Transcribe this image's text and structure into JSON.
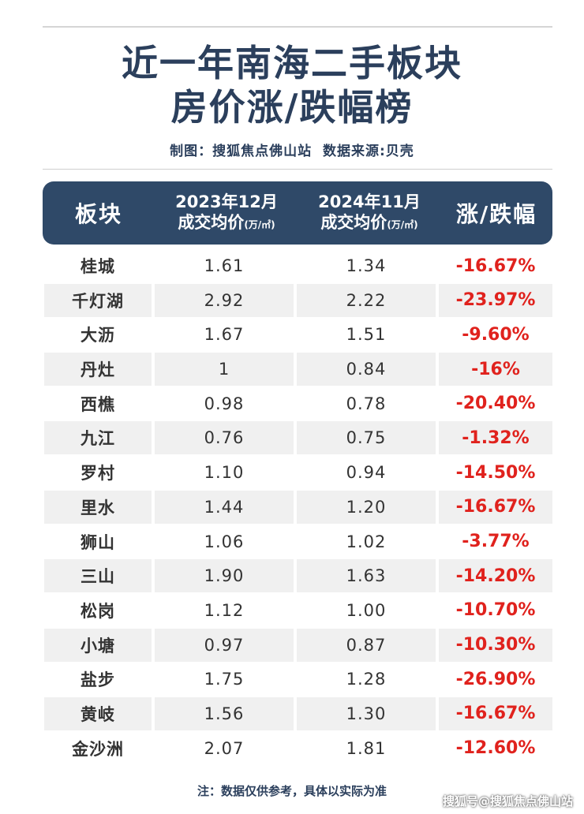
{
  "title": {
    "line1": "近一年南海二手板块",
    "line2": "房价涨/跌幅榜"
  },
  "credits": "制图：搜狐焦点佛山站  数据来源:贝壳",
  "table": {
    "headers": {
      "block": "板块",
      "col2_line1": "2023年12月",
      "col2_line2": "成交均价",
      "col2_unit": "(万/㎡)",
      "col3_line1": "2024年11月",
      "col3_line2": "成交均价",
      "col3_unit": "(万/㎡)",
      "change": "涨/跌幅"
    },
    "rows": [
      {
        "name": "桂城",
        "price_2023": "1.61",
        "price_2024": "1.34",
        "change": "-16.67%"
      },
      {
        "name": "千灯湖",
        "price_2023": "2.92",
        "price_2024": "2.22",
        "change": "-23.97%"
      },
      {
        "name": "大沥",
        "price_2023": "1.67",
        "price_2024": "1.51",
        "change": "-9.60%"
      },
      {
        "name": "丹灶",
        "price_2023": "1",
        "price_2024": "0.84",
        "change": "-16%"
      },
      {
        "name": "西樵",
        "price_2023": "0.98",
        "price_2024": "0.78",
        "change": "-20.40%"
      },
      {
        "name": "九江",
        "price_2023": "0.76",
        "price_2024": "0.75",
        "change": "-1.32%"
      },
      {
        "name": "罗村",
        "price_2023": "1.10",
        "price_2024": "0.94",
        "change": "-14.50%"
      },
      {
        "name": "里水",
        "price_2023": "1.44",
        "price_2024": "1.20",
        "change": "-16.67%"
      },
      {
        "name": "狮山",
        "price_2023": "1.06",
        "price_2024": "1.02",
        "change": "-3.77%"
      },
      {
        "name": "三山",
        "price_2023": "1.90",
        "price_2024": "1.63",
        "change": "-14.20%"
      },
      {
        "name": "松岗",
        "price_2023": "1.12",
        "price_2024": "1.00",
        "change": "-10.70%"
      },
      {
        "name": "小塘",
        "price_2023": "0.97",
        "price_2024": "0.87",
        "change": "-10.30%"
      },
      {
        "name": "盐步",
        "price_2023": "1.75",
        "price_2024": "1.28",
        "change": "-26.90%"
      },
      {
        "name": "黄岐",
        "price_2023": "1.56",
        "price_2024": "1.30",
        "change": "-16.67%"
      },
      {
        "name": "金沙洲",
        "price_2023": "2.07",
        "price_2024": "1.81",
        "change": "-12.60%"
      }
    ]
  },
  "note": "注：数据仅供参考，具体以实际为准",
  "watermark": "搜狐号@搜狐焦点佛山站",
  "colors": {
    "title": "#2b3f5c",
    "header_bg": "#2f4968",
    "row_shade": "#f0f0f0",
    "negative": "#e0221d"
  }
}
